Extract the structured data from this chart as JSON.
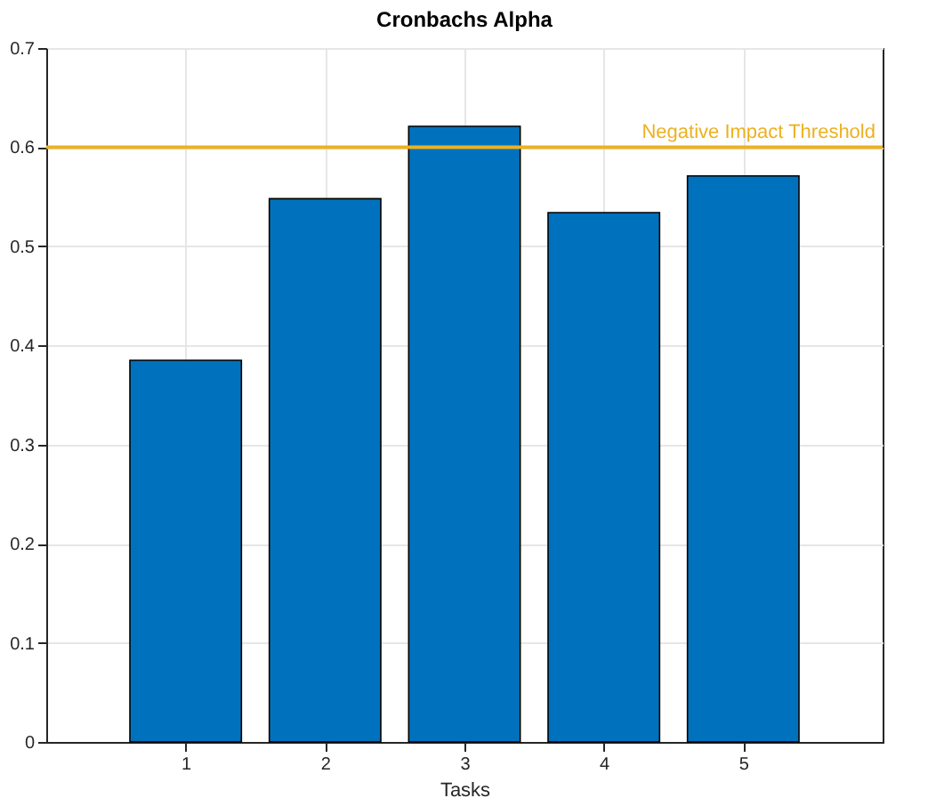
{
  "chart_data": {
    "type": "bar",
    "title": "Cronbachs Alpha",
    "xlabel": "Tasks",
    "x": [
      1,
      2,
      3,
      4,
      5
    ],
    "values": [
      0.385,
      0.548,
      0.621,
      0.534,
      0.571
    ],
    "color": "#0072bd",
    "xlim": [
      0,
      6
    ],
    "xticks": [
      1,
      2,
      3,
      4,
      5
    ],
    "ylim": [
      0,
      0.7
    ],
    "yticks": [
      0,
      0.1,
      0.2,
      0.3,
      0.4,
      0.5,
      0.6,
      0.7
    ],
    "grid": true,
    "ref_lines": [
      {
        "axis": "y",
        "value": 0.6,
        "label": "Negative Impact Threshold",
        "color": "#edb120"
      }
    ]
  }
}
